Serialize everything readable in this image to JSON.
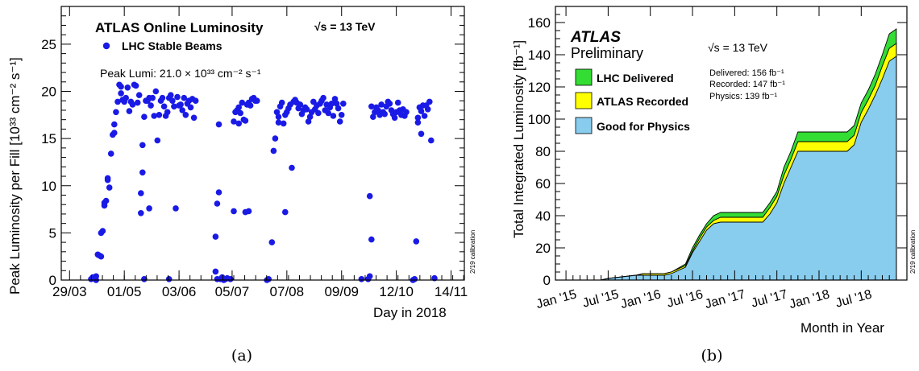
{
  "panels": {
    "a": {
      "caption": "(a)"
    },
    "b": {
      "caption": "(b)"
    }
  },
  "chart_data": [
    {
      "type": "scatter",
      "title": "ATLAS Online Luminosity",
      "energy_label": "√s = 13 TeV",
      "legend_label": "LHC Stable Beams",
      "peak_label": "Peak Lumi: 21.0 × 10³³ cm⁻² s⁻¹",
      "xlabel": "Day in 2018",
      "ylabel": "Peak Luminosity per Fill [10³³ cm⁻² s⁻¹]",
      "calibration_note": "2/19 calibration",
      "x_ticks": [
        "29/03",
        "01/05",
        "03/06",
        "05/07",
        "07/08",
        "09/09",
        "12/10",
        "14/11"
      ],
      "x_tick_days": [
        88,
        121,
        154,
        186,
        219,
        252,
        285,
        318
      ],
      "ylim": [
        0,
        29
      ],
      "y_ticks": [
        0,
        5,
        10,
        15,
        20,
        25
      ],
      "marker_color": "#1a1ae6",
      "points": [
        [
          101,
          0.1
        ],
        [
          102,
          0.3
        ],
        [
          103,
          0.2
        ],
        [
          104,
          0.4
        ],
        [
          104,
          0.0
        ],
        [
          105,
          2.7
        ],
        [
          106,
          2.6
        ],
        [
          107,
          2.5
        ],
        [
          107,
          5.0
        ],
        [
          108,
          5.2
        ],
        [
          109,
          7.9
        ],
        [
          109,
          8.2
        ],
        [
          110,
          8.4
        ],
        [
          111,
          10.6
        ],
        [
          111,
          10.8
        ],
        [
          112,
          9.8
        ],
        [
          113,
          13.4
        ],
        [
          114,
          15.4
        ],
        [
          115,
          15.6
        ],
        [
          115,
          16.5
        ],
        [
          116,
          17.8
        ],
        [
          117,
          18.9
        ],
        [
          118,
          20.7
        ],
        [
          119,
          20.5
        ],
        [
          119,
          19.8
        ],
        [
          120,
          19.1
        ],
        [
          121,
          18.9
        ],
        [
          122,
          19.3
        ],
        [
          123,
          20.4
        ],
        [
          124,
          17.9
        ],
        [
          125,
          18.9
        ],
        [
          126,
          18.6
        ],
        [
          127,
          20.7
        ],
        [
          128,
          20.6
        ],
        [
          129,
          18.8
        ],
        [
          130,
          19.6
        ],
        [
          131,
          7.1
        ],
        [
          131,
          9.2
        ],
        [
          132,
          14.3
        ],
        [
          132,
          11.4
        ],
        [
          133,
          17.3
        ],
        [
          133,
          0.1
        ],
        [
          134,
          19.0
        ],
        [
          135,
          19.0
        ],
        [
          136,
          19.3
        ],
        [
          136,
          7.6
        ],
        [
          137,
          18.5
        ],
        [
          138,
          19.3
        ],
        [
          139,
          17.4
        ],
        [
          140,
          20.0
        ],
        [
          141,
          14.8
        ],
        [
          142,
          17.5
        ],
        [
          143,
          19.0
        ],
        [
          144,
          19.3
        ],
        [
          145,
          18.4
        ],
        [
          146,
          17.4
        ],
        [
          147,
          17.8
        ],
        [
          148,
          19.3
        ],
        [
          148,
          0.1
        ],
        [
          149,
          19.6
        ],
        [
          150,
          19.0
        ],
        [
          151,
          18.4
        ],
        [
          152,
          7.6
        ],
        [
          153,
          19.4
        ],
        [
          154,
          18.5
        ],
        [
          155,
          18.6
        ],
        [
          156,
          18.0
        ],
        [
          157,
          19.3
        ],
        [
          158,
          17.5
        ],
        [
          159,
          18.7
        ],
        [
          160,
          19.0
        ],
        [
          161,
          18.3
        ],
        [
          162,
          19.2
        ],
        [
          163,
          17.2
        ],
        [
          164,
          19.0
        ],
        [
          176,
          4.6
        ],
        [
          176,
          0.9
        ],
        [
          177,
          0.1
        ],
        [
          177,
          8.1
        ],
        [
          178,
          9.3
        ],
        [
          178,
          16.5
        ],
        [
          179,
          0.1
        ],
        [
          180,
          0.3
        ],
        [
          181,
          0.0
        ],
        [
          182,
          0.1
        ],
        [
          183,
          0.2
        ],
        [
          185,
          0.1
        ],
        [
          187,
          7.3
        ],
        [
          187,
          16.8
        ],
        [
          188,
          17.8
        ],
        [
          189,
          18.0
        ],
        [
          190,
          18.3
        ],
        [
          190,
          16.6
        ],
        [
          191,
          17.7
        ],
        [
          192,
          18.8
        ],
        [
          193,
          17.0
        ],
        [
          194,
          16.9
        ],
        [
          194,
          7.2
        ],
        [
          195,
          18.6
        ],
        [
          196,
          7.3
        ],
        [
          196,
          18.8
        ],
        [
          197,
          18.5
        ],
        [
          198,
          19.2
        ],
        [
          199,
          19.3
        ],
        [
          200,
          19.0
        ],
        [
          201,
          19.0
        ],
        [
          207,
          0.0
        ],
        [
          208,
          0.1
        ],
        [
          210,
          4.0
        ],
        [
          211,
          13.7
        ],
        [
          212,
          15.0
        ],
        [
          213,
          17.8
        ],
        [
          214,
          16.7
        ],
        [
          214,
          17.3
        ],
        [
          215,
          18.4
        ],
        [
          216,
          18.8
        ],
        [
          217,
          16.6
        ],
        [
          218,
          17.5
        ],
        [
          218,
          7.2
        ],
        [
          219,
          17.8
        ],
        [
          220,
          18.2
        ],
        [
          221,
          18.6
        ],
        [
          222,
          11.9
        ],
        [
          223,
          18.9
        ],
        [
          224,
          19.1
        ],
        [
          225,
          18.8
        ],
        [
          226,
          18.2
        ],
        [
          227,
          18.6
        ],
        [
          228,
          17.6
        ],
        [
          229,
          18.0
        ],
        [
          230,
          18.3
        ],
        [
          231,
          18.1
        ],
        [
          232,
          16.8
        ],
        [
          233,
          17.3
        ],
        [
          234,
          17.8
        ],
        [
          235,
          18.9
        ],
        [
          236,
          18.1
        ],
        [
          237,
          18.5
        ],
        [
          238,
          17.7
        ],
        [
          239,
          18.7
        ],
        [
          240,
          19.0
        ],
        [
          241,
          19.3
        ],
        [
          242,
          18.0
        ],
        [
          243,
          18.6
        ],
        [
          244,
          17.7
        ],
        [
          245,
          18.3
        ],
        [
          246,
          18.7
        ],
        [
          247,
          17.4
        ],
        [
          248,
          19.2
        ],
        [
          249,
          18.7
        ],
        [
          250,
          18.2
        ],
        [
          251,
          16.8
        ],
        [
          252,
          17.5
        ],
        [
          253,
          18.7
        ],
        [
          264,
          0.1
        ],
        [
          268,
          0.1
        ],
        [
          269,
          0.4
        ],
        [
          269,
          8.9
        ],
        [
          270,
          4.3
        ],
        [
          270,
          18.4
        ],
        [
          271,
          17.3
        ],
        [
          272,
          17.8
        ],
        [
          273,
          18.3
        ],
        [
          274,
          18.0
        ],
        [
          275,
          17.5
        ],
        [
          276,
          18.6
        ],
        [
          277,
          17.8
        ],
        [
          278,
          17.6
        ],
        [
          279,
          18.4
        ],
        [
          280,
          18.9
        ],
        [
          281,
          18.7
        ],
        [
          282,
          18.0
        ],
        [
          283,
          17.6
        ],
        [
          284,
          17.2
        ],
        [
          285,
          17.8
        ],
        [
          286,
          18.8
        ],
        [
          287,
          18.0
        ],
        [
          288,
          17.5
        ],
        [
          289,
          18.1
        ],
        [
          290,
          17.4
        ],
        [
          291,
          17.8
        ],
        [
          295,
          0.0
        ],
        [
          296,
          0.1
        ],
        [
          297,
          4.1
        ],
        [
          298,
          17.2
        ],
        [
          298,
          16.7
        ],
        [
          299,
          18.3
        ],
        [
          300,
          15.5
        ],
        [
          300,
          17.9
        ],
        [
          301,
          18.5
        ],
        [
          302,
          17.4
        ],
        [
          303,
          18.5
        ],
        [
          304,
          18.1
        ],
        [
          305,
          18.9
        ],
        [
          306,
          14.8
        ],
        [
          308,
          0.2
        ]
      ]
    },
    {
      "type": "area",
      "experiment_label": "ATLAS",
      "status_label": "Preliminary",
      "energy_label": "√s = 13 TeV",
      "xlabel": "Month in Year",
      "ylabel": "Total Integrated Luminosity [fb⁻¹]",
      "calibration_note": "2/19 calibration",
      "x_ticks": [
        "Jan '15",
        "Jul '15",
        "Jan '16",
        "Jul '16",
        "Jan '17",
        "Jul '17",
        "Jan '18",
        "Jul '18"
      ],
      "ylim": [
        0,
        170
      ],
      "y_ticks": [
        0,
        20,
        40,
        60,
        80,
        100,
        120,
        140,
        160
      ],
      "totals": [
        {
          "label": "Delivered: 156 fb⁻¹"
        },
        {
          "label": "Recorded: 147 fb⁻¹"
        },
        {
          "label": "Physics: 139 fb⁻¹"
        }
      ],
      "series": [
        {
          "name": "LHC Delivered",
          "color": "#33dd33"
        },
        {
          "name": "ATLAS Recorded",
          "color": "#ffff00"
        },
        {
          "name": "Good for Physics",
          "color": "#88ccee"
        }
      ],
      "x_months": [
        0,
        5,
        6,
        10,
        11,
        12,
        14,
        15,
        17,
        18,
        19,
        20,
        21,
        22,
        24,
        28,
        29,
        30,
        31,
        32,
        33,
        34,
        35,
        37,
        40,
        41,
        42,
        43,
        44,
        45,
        46,
        47
      ],
      "delivered": [
        0,
        0,
        1,
        3,
        4,
        4,
        4,
        5,
        10,
        20,
        28,
        35,
        40,
        42,
        42,
        42,
        48,
        55,
        70,
        80,
        92,
        92,
        92,
        92,
        92,
        96,
        110,
        118,
        128,
        140,
        153,
        156
      ],
      "recorded": [
        0,
        0,
        1,
        3,
        4,
        4,
        4,
        5,
        9,
        18,
        26,
        33,
        37,
        39,
        39,
        39,
        45,
        52,
        65,
        75,
        86,
        86,
        86,
        86,
        86,
        90,
        104,
        112,
        121,
        133,
        144,
        147
      ],
      "physics": [
        0,
        0,
        1,
        3,
        3,
        3,
        3,
        4,
        8,
        17,
        24,
        31,
        35,
        36,
        36,
        36,
        41,
        48,
        60,
        70,
        80,
        80,
        80,
        80,
        80,
        84,
        98,
        106,
        115,
        125,
        136,
        139
      ]
    }
  ]
}
